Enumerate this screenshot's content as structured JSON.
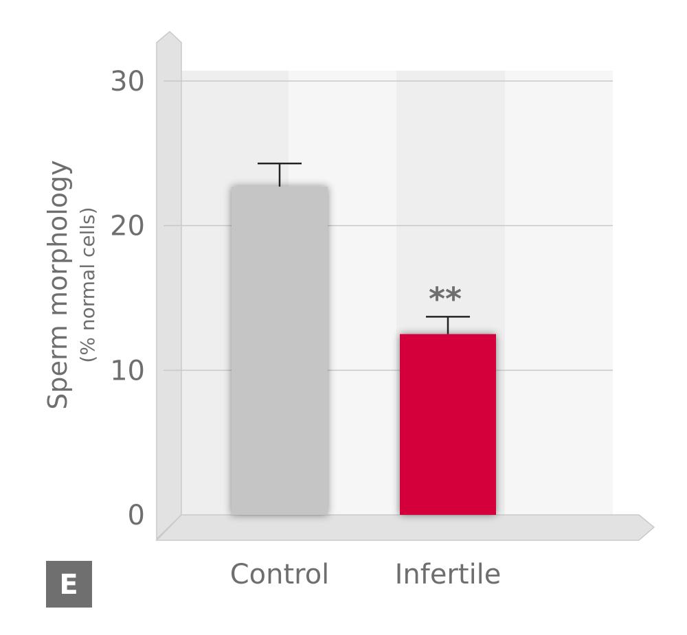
{
  "chart_data": {
    "type": "bar",
    "categories": [
      "Control",
      "Infertile"
    ],
    "values": [
      22.7,
      12.5
    ],
    "errors": [
      1.6,
      1.2
    ],
    "colors": [
      "#c5c5c5",
      "#d3063a"
    ],
    "annotations": [
      {
        "category": "Infertile",
        "text": "**"
      }
    ],
    "title": "",
    "xlabel": "",
    "ylabel": "Sperm morphology",
    "ylabel_sub": "(% normal cells)",
    "ylim": [
      0,
      30
    ],
    "yticks": [
      0,
      10,
      20,
      30
    ],
    "grid": true,
    "legend": "none"
  },
  "panel_label": "E"
}
